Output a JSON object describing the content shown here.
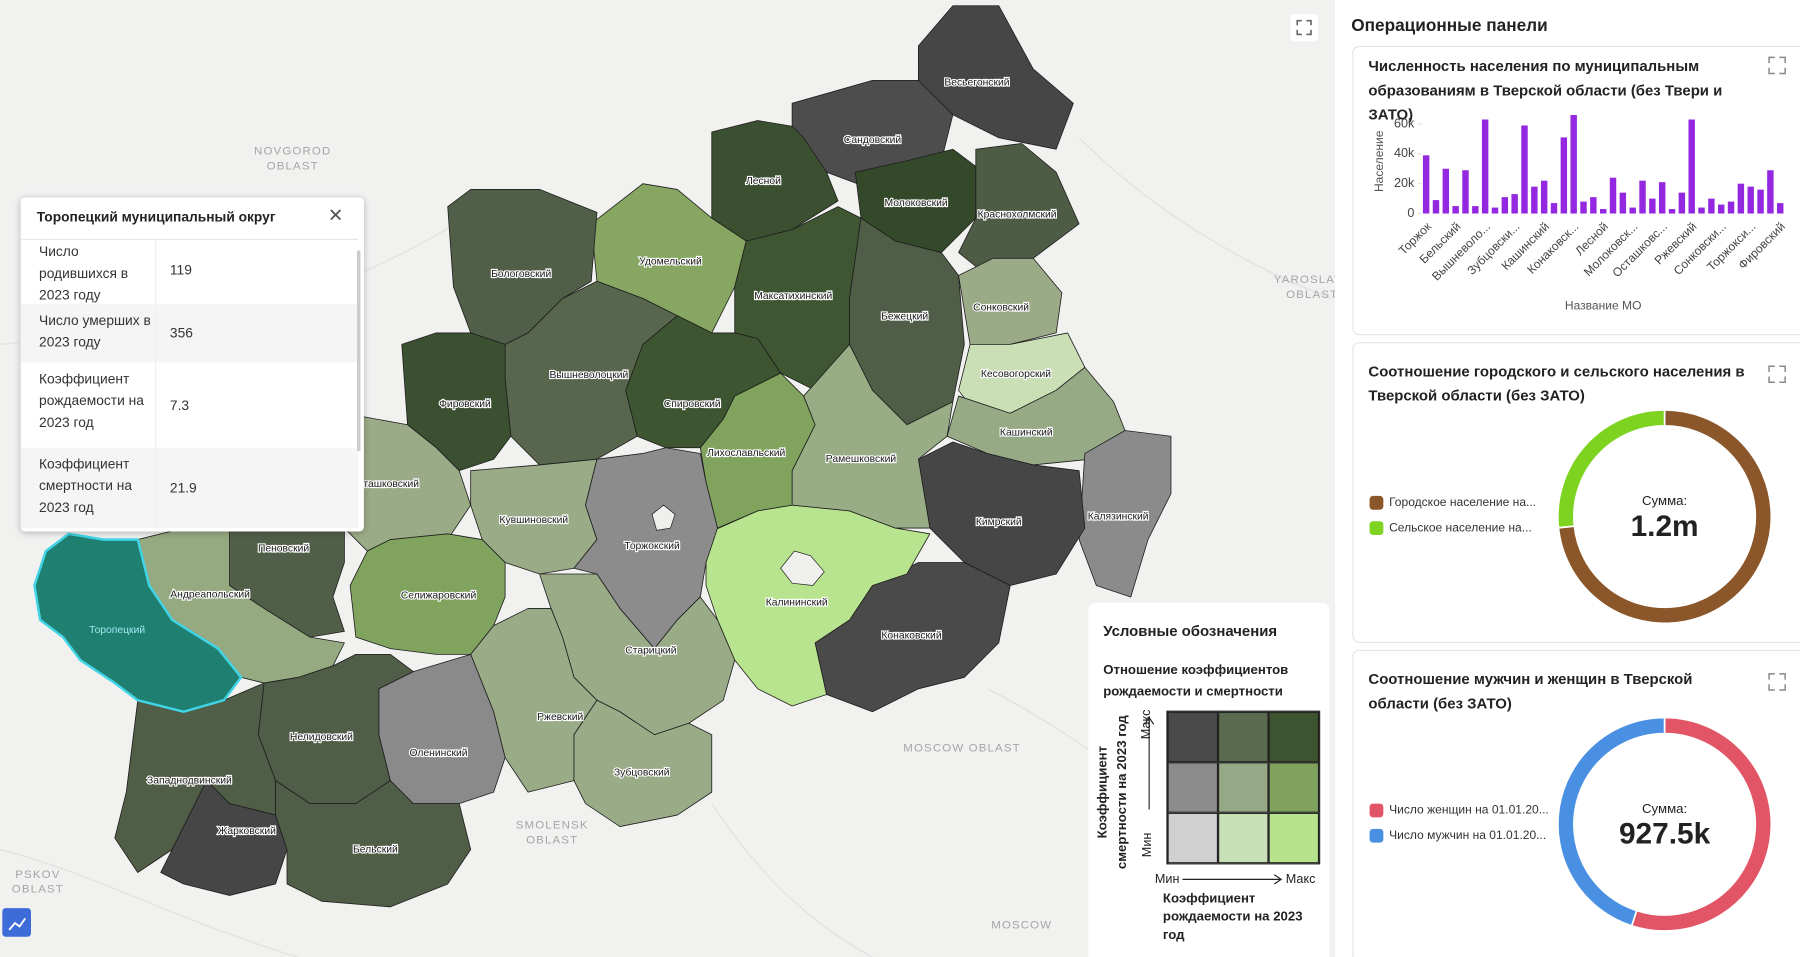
{
  "map": {
    "districts": [
      {
        "name": "Весьегонский",
        "color": "#464646"
      },
      {
        "name": "Сандовский",
        "color": "#4d4d4d"
      },
      {
        "name": "Лесной",
        "color": "#3b5030"
      },
      {
        "name": "Молоковский",
        "color": "#34492a"
      },
      {
        "name": "Краснохолмский",
        "color": "#4e5c46"
      },
      {
        "name": "Удомельский",
        "color": "#86a662"
      },
      {
        "name": "Бологовский",
        "color": "#515f49"
      },
      {
        "name": "Максатихинский",
        "color": "#3f5632"
      },
      {
        "name": "Бежецкий",
        "color": "#505d47"
      },
      {
        "name": "Сонковский",
        "color": "#9bab87"
      },
      {
        "name": "Кесовогорский",
        "color": "#cadfb6"
      },
      {
        "name": "Кашинский",
        "color": "#95aa85"
      },
      {
        "name": "Калязинский",
        "color": "#8b8b8b"
      },
      {
        "name": "Кимрский",
        "color": "#464646"
      },
      {
        "name": "Конаковский",
        "color": "#4a4a4a"
      },
      {
        "name": "Калининский",
        "color": "#b9e48f"
      },
      {
        "name": "Рамешковский",
        "color": "#98ad86"
      },
      {
        "name": "Лихославльский",
        "color": "#80a35e"
      },
      {
        "name": "Спировский",
        "color": "#3e5531"
      },
      {
        "name": "Вышневолоцкий",
        "color": "#57664d"
      },
      {
        "name": "Фировский",
        "color": "#3b5030"
      },
      {
        "name": "Осташковский",
        "color": "#9bab87"
      },
      {
        "name": "Кувшиновский",
        "color": "#99ab87"
      },
      {
        "name": "Торжокский",
        "color": "#8c8c8c"
      },
      {
        "name": "Пеновский",
        "color": "#515f49"
      },
      {
        "name": "Селижаровский",
        "color": "#80a35e"
      },
      {
        "name": "Андреапольский",
        "color": "#96aa82"
      },
      {
        "name": "Торопецкий",
        "color": "#1f7f70"
      },
      {
        "name": "Старицкий",
        "color": "#9aac87"
      },
      {
        "name": "Ржевский",
        "color": "#99ab87"
      },
      {
        "name": "Зубцовский",
        "color": "#99ab87"
      },
      {
        "name": "Оленинский",
        "color": "#8a8a8a"
      },
      {
        "name": "Нелидовский",
        "color": "#505d47"
      },
      {
        "name": "Западнодвинский",
        "color": "#505d47"
      },
      {
        "name": "Жарковский",
        "color": "#464646"
      },
      {
        "name": "Бельский",
        "color": "#505d47"
      }
    ],
    "regions": [
      {
        "lines": [
          "NOVGOROD",
          "OBLAST"
        ]
      },
      {
        "lines": [
          "YAROSLAVL",
          "OBLAST"
        ]
      },
      {
        "lines": [
          "MOSCOW OBLAST"
        ]
      },
      {
        "lines": [
          "SMOLENSK",
          "OBLAST"
        ]
      },
      {
        "lines": [
          "PSKOV",
          "OBLAST"
        ]
      },
      {
        "lines": [
          "MOSCOW"
        ]
      }
    ]
  },
  "tooltip": {
    "title": "Торопецкий муниципальный округ",
    "rows": [
      [
        "Число родившихся в 2023 году",
        119
      ],
      [
        "Число умерших в 2023 году",
        356
      ],
      [
        "Коэффициент рождаемости на 2023 год",
        7.3
      ],
      [
        "Коэффициент смертности на 2023 год",
        21.9
      ]
    ]
  },
  "legend": {
    "title": "Условные обозначения",
    "subtitle": "Отношение коэффициентов рождаемости и смертности",
    "cells": [
      [
        "#4a4a4a",
        "#5a6b4f",
        "#3d5430"
      ],
      [
        "#8c8c8c",
        "#96a987",
        "#7fa35d"
      ],
      [
        "#d0d0d0",
        "#c8e0b6",
        "#b8e38e"
      ]
    ],
    "y_title": "Коэффициент смертности на 2023 год",
    "x_title": "Коэффициент рождаемости на 2023 год",
    "min": "Мин",
    "max": "Макс"
  },
  "panel": {
    "title": "Операционные панели"
  },
  "chart_data": [
    {
      "type": "bar",
      "title": "Численность населения по муниципальным образованиям в Тверской области (без Твери и ЗАТО)",
      "y_label": "Население",
      "x_label": "Название МО",
      "color": "#9428e0",
      "grid": false,
      "categories": [
        "Торжок",
        null,
        null,
        "Бельский",
        null,
        null,
        "Вышневоло...",
        null,
        null,
        "Зубцовски...",
        null,
        null,
        "Кашинский",
        null,
        null,
        "Конаковск...",
        null,
        null,
        "Лесной",
        null,
        null,
        "Молоковск...",
        null,
        null,
        "Осташковс...",
        null,
        null,
        "Ржевский",
        null,
        null,
        "Сонковски...",
        null,
        null,
        "Торжокси...",
        null,
        null,
        "Фировский"
      ],
      "values": [
        39000,
        9000,
        30000,
        5000,
        29000,
        5000,
        63000,
        4000,
        11000,
        13000,
        59000,
        18000,
        22000,
        7000,
        51000,
        66000,
        8000,
        11000,
        3000,
        24000,
        14000,
        4000,
        22000,
        10000,
        21000,
        3000,
        14000,
        63000,
        4000,
        10000,
        6000,
        8000,
        20000,
        18000,
        16000,
        29000,
        7000
      ],
      "ylim": [
        0,
        70000
      ],
      "yticks": [
        0,
        {
          "value": 20000,
          "label": "20k"
        },
        {
          "value": 40000,
          "label": "40k"
        },
        {
          "value": 60000,
          "label": "60k"
        }
      ]
    },
    {
      "type": "donut",
      "title": "Соотношение городского и сельского населения в Тверской области (без ЗАТО)",
      "categories": [
        "Городское население на...",
        "Сельское население на..."
      ],
      "colors": [
        "#8b572a",
        "#7ed321"
      ],
      "values": [
        880000,
        320000
      ],
      "center_label": "Сумма:",
      "total": 1200000,
      "total_label": "1.2m"
    },
    {
      "type": "donut",
      "title": "Соотношение мужчин и женщин в Тверской области (без ЗАТО)",
      "categories": [
        "Число женщин на 01.01.20...",
        "Число мужчин на 01.01.20..."
      ],
      "colors": [
        "#e25566",
        "#4a90e2"
      ],
      "values": [
        510000,
        417500
      ],
      "center_label": "Сумма:",
      "total": 927500,
      "total_label": "927.5k"
    }
  ]
}
